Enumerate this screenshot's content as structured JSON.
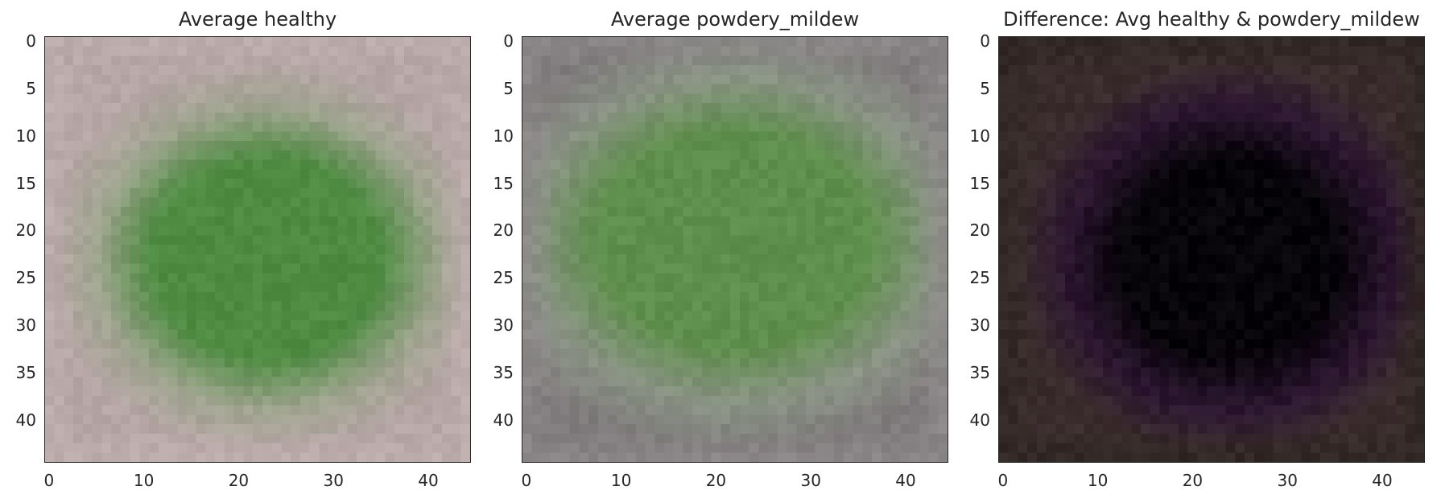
{
  "chart_data": [
    {
      "type": "heatmap",
      "title": "Average healthy",
      "xlabel": "",
      "ylabel": "",
      "xlim": [
        -0.5,
        44.5
      ],
      "ylim": [
        44.5,
        -0.5
      ],
      "x_ticks": [
        0,
        10,
        20,
        30,
        40
      ],
      "y_ticks": [
        0,
        5,
        10,
        15,
        20,
        25,
        30,
        35,
        40
      ],
      "grid": false,
      "image": {
        "size": [
          45,
          45
        ],
        "background_color": "#b7a6a6",
        "edge_color": "#bfaeaf",
        "mid_color": "#a0a490",
        "leaf_color": "#4f8c42",
        "leaf_center": [
          23,
          23
        ],
        "leaf_radius": [
          16,
          14
        ]
      }
    },
    {
      "type": "heatmap",
      "title": "Average powdery_mildew",
      "xlabel": "",
      "ylabel": "",
      "xlim": [
        -0.5,
        44.5
      ],
      "ylim": [
        44.5,
        -0.5
      ],
      "x_ticks": [
        0,
        10,
        20,
        30,
        40
      ],
      "y_ticks": [
        0,
        5,
        10,
        15,
        20,
        25,
        30,
        35,
        40
      ],
      "grid": false,
      "image": {
        "size": [
          45,
          45
        ],
        "background_color": "#7f7b7c",
        "edge_color": "#8e8a8b",
        "mid_color": "#8a9384",
        "leaf_color": "#5f8f4c",
        "leaf_center": [
          22,
          21
        ],
        "leaf_radius": [
          19,
          15
        ]
      }
    },
    {
      "type": "heatmap",
      "title": "Difference: Avg healthy & powdery_mildew",
      "xlabel": "",
      "ylabel": "",
      "xlim": [
        -0.5,
        44.5
      ],
      "ylim": [
        44.5,
        -0.5
      ],
      "x_ticks": [
        0,
        10,
        20,
        30,
        40
      ],
      "y_ticks": [
        0,
        5,
        10,
        15,
        20,
        25,
        30,
        35,
        40
      ],
      "grid": false,
      "image": {
        "size": [
          45,
          45
        ],
        "background_color": "#3a2c2d",
        "edge_color": "#2f2622",
        "mid_color": "#2c1630",
        "leaf_color": "#07040a",
        "leaf_center": [
          24,
          23
        ],
        "leaf_radius": [
          15,
          14
        ]
      }
    }
  ]
}
